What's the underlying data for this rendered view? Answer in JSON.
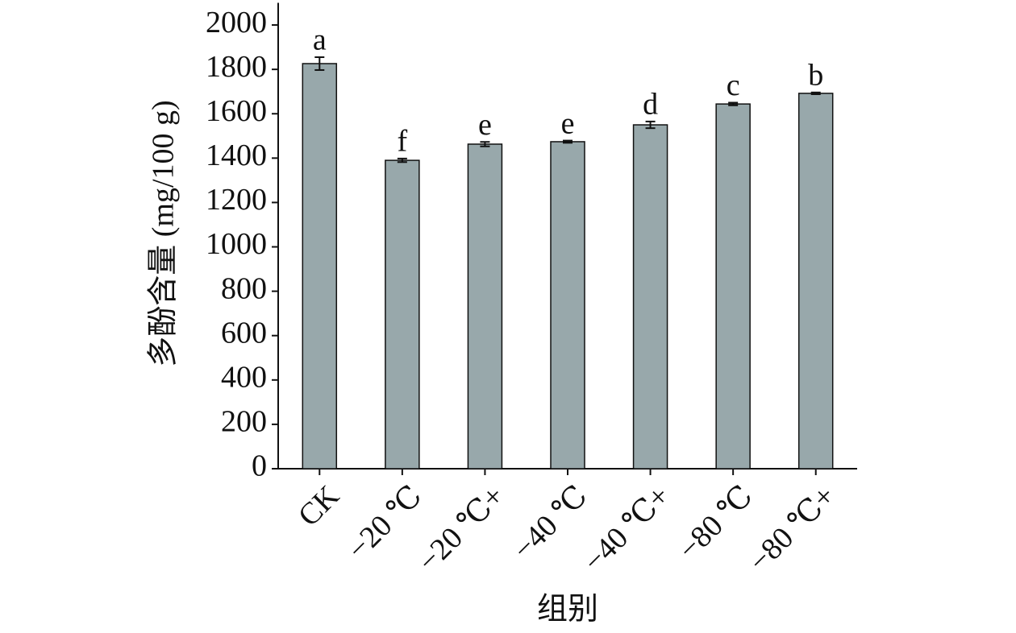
{
  "chart_data": {
    "type": "bar",
    "ylabel": "多酚含量 (mg/100 g)",
    "xlabel": "组别",
    "categories": [
      "CK",
      "−20 ℃",
      "−20 ℃+",
      "−40 ℃",
      "−40 ℃+",
      "−80 ℃",
      "−80 ℃+"
    ],
    "values": [
      1826,
      1390,
      1463,
      1474,
      1550,
      1644,
      1692
    ],
    "errors": [
      29,
      8,
      10,
      5,
      15,
      6,
      4
    ],
    "letters": [
      "a",
      "f",
      "e",
      "e",
      "d",
      "c",
      "b"
    ],
    "color": "#98a8ab",
    "ylim": [
      0,
      2100
    ],
    "yticks": [
      0,
      200,
      400,
      600,
      800,
      1000,
      1200,
      1400,
      1600,
      1800,
      2000
    ]
  }
}
